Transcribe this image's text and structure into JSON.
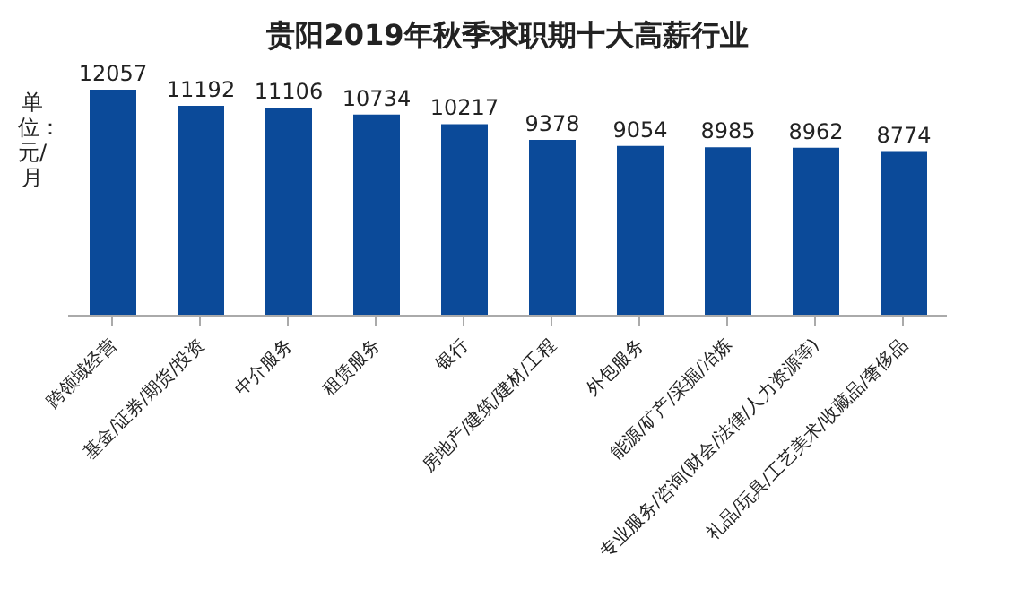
{
  "chart_data": {
    "type": "bar",
    "title": "贵阳2019年秋季求职期十大高薪行业",
    "ylabel": "单位：元/月",
    "categories": [
      "跨领域经营",
      "基金/证券/期货/投资",
      "中介服务",
      "租赁服务",
      "银行",
      "房地产/建筑/建材/工程",
      "外包服务",
      "能源/矿产/采掘/冶炼",
      "专业服务/咨询(财会/法律/人力资源等)",
      "礼品/玩具/工艺美术/收藏品/奢侈品"
    ],
    "values": [
      12057,
      11192,
      11106,
      10734,
      10217,
      9378,
      9054,
      8985,
      8962,
      8774
    ],
    "color": "#0b4a99",
    "data_labels": true,
    "grid": false,
    "legend": false,
    "tick_labels": "x"
  }
}
